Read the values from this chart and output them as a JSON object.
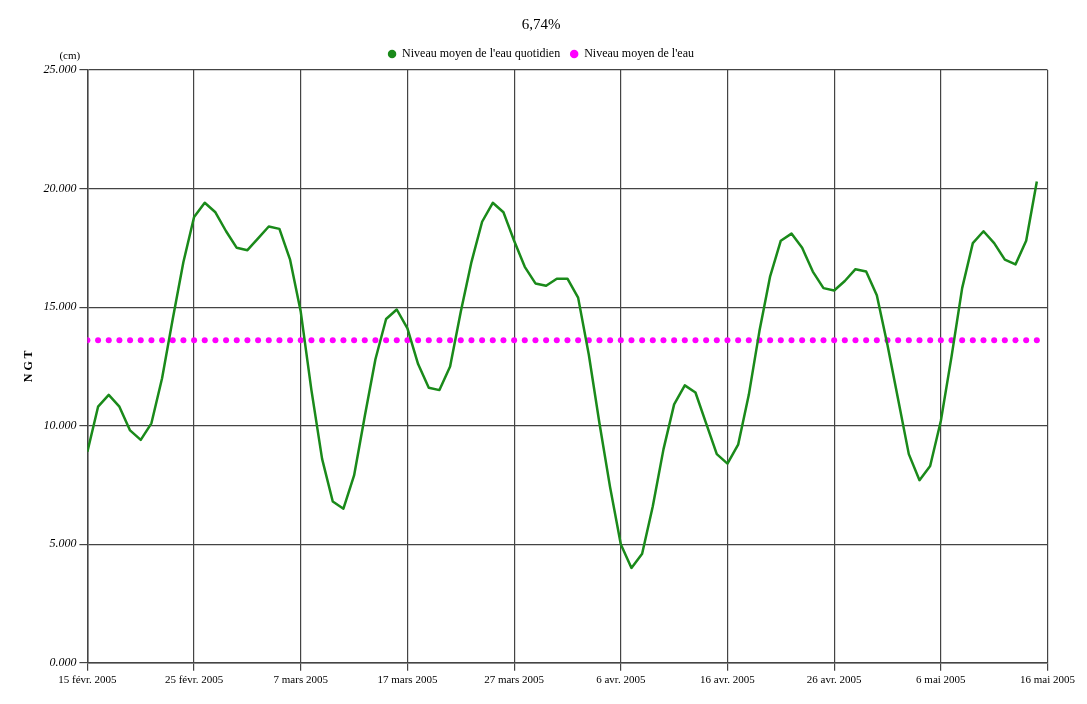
{
  "chart_data": {
    "type": "line",
    "title": "6,74%",
    "ylabel": "N G T",
    "annotations": [
      "(cm)"
    ],
    "x": [
      "2005-02-15",
      "2005-02-16",
      "2005-02-17",
      "2005-02-18",
      "2005-02-19",
      "2005-02-20",
      "2005-02-21",
      "2005-02-22",
      "2005-02-23",
      "2005-02-24",
      "2005-02-25",
      "2005-02-26",
      "2005-02-27",
      "2005-02-28",
      "2005-03-01",
      "2005-03-02",
      "2005-03-03",
      "2005-03-04",
      "2005-03-05",
      "2005-03-06",
      "2005-03-07",
      "2005-03-08",
      "2005-03-09",
      "2005-03-10",
      "2005-03-11",
      "2005-03-12",
      "2005-03-13",
      "2005-03-14",
      "2005-03-15",
      "2005-03-16",
      "2005-03-17",
      "2005-03-18",
      "2005-03-19",
      "2005-03-20",
      "2005-03-21",
      "2005-03-22",
      "2005-03-23",
      "2005-03-24",
      "2005-03-25",
      "2005-03-26",
      "2005-03-27",
      "2005-03-28",
      "2005-03-29",
      "2005-03-30",
      "2005-03-31",
      "2005-04-01",
      "2005-04-02",
      "2005-04-03",
      "2005-04-04",
      "2005-04-05",
      "2005-04-06",
      "2005-04-07",
      "2005-04-08",
      "2005-04-09",
      "2005-04-10",
      "2005-04-11",
      "2005-04-12",
      "2005-04-13",
      "2005-04-14",
      "2005-04-15",
      "2005-04-16",
      "2005-04-17",
      "2005-04-18",
      "2005-04-19",
      "2005-04-20",
      "2005-04-21",
      "2005-04-22",
      "2005-04-23",
      "2005-04-24",
      "2005-04-25",
      "2005-04-26",
      "2005-04-27",
      "2005-04-28",
      "2005-04-29",
      "2005-04-30",
      "2005-05-01",
      "2005-05-02",
      "2005-05-03",
      "2005-05-04",
      "2005-05-05",
      "2005-05-06",
      "2005-05-07",
      "2005-05-08",
      "2005-05-09",
      "2005-05-10",
      "2005-05-11",
      "2005-05-12",
      "2005-05-13",
      "2005-05-14",
      "2005-05-15"
    ],
    "series": [
      {
        "name": "Niveau moyen de l'eau quotidien",
        "color": "#1a8a1a",
        "marker": "none",
        "line_style": "solid",
        "values": [
          8.9,
          10.8,
          11.3,
          10.8,
          9.8,
          9.4,
          10.1,
          12.0,
          14.5,
          16.9,
          18.8,
          19.4,
          19.0,
          18.2,
          17.5,
          17.4,
          17.9,
          18.4,
          18.3,
          17.0,
          14.8,
          11.5,
          8.6,
          6.8,
          6.5,
          7.9,
          10.4,
          12.8,
          14.5,
          14.9,
          14.1,
          12.6,
          11.6,
          11.5,
          12.5,
          14.8,
          16.9,
          18.6,
          19.4,
          19.0,
          17.8,
          16.7,
          16.0,
          15.9,
          16.2,
          16.2,
          15.4,
          13.0,
          10.1,
          7.4,
          5.0,
          4.0,
          4.6,
          6.6,
          9.0,
          10.9,
          11.7,
          11.4,
          10.1,
          8.8,
          8.4,
          9.2,
          11.3,
          14.0,
          16.3,
          17.8,
          18.1,
          17.5,
          16.5,
          15.8,
          15.7,
          16.1,
          16.6,
          16.5,
          15.5,
          13.4,
          11.1,
          8.8,
          7.7,
          8.3,
          10.2,
          12.9,
          15.8,
          17.7,
          18.2,
          17.7,
          17.0,
          16.8,
          17.8,
          20.3
        ]
      },
      {
        "name": "Niveau moyen de l'eau",
        "type": "scatter",
        "color": "#ff00ff",
        "marker": "circle",
        "values": [
          13.6,
          13.6,
          13.6,
          13.6,
          13.6,
          13.6,
          13.6,
          13.6,
          13.6,
          13.6,
          13.6,
          13.6,
          13.6,
          13.6,
          13.6,
          13.6,
          13.6,
          13.6,
          13.6,
          13.6,
          13.6,
          13.6,
          13.6,
          13.6,
          13.6,
          13.6,
          13.6,
          13.6,
          13.6,
          13.6,
          13.6,
          13.6,
          13.6,
          13.6,
          13.6,
          13.6,
          13.6,
          13.6,
          13.6,
          13.6,
          13.6,
          13.6,
          13.6,
          13.6,
          13.6,
          13.6,
          13.6,
          13.6,
          13.6,
          13.6,
          13.6,
          13.6,
          13.6,
          13.6,
          13.6,
          13.6,
          13.6,
          13.6,
          13.6,
          13.6,
          13.6,
          13.6,
          13.6,
          13.6,
          13.6,
          13.6,
          13.6,
          13.6,
          13.6,
          13.6,
          13.6,
          13.6,
          13.6,
          13.6,
          13.6,
          13.6,
          13.6,
          13.6,
          13.6,
          13.6,
          13.6,
          13.6,
          13.6,
          13.6,
          13.6,
          13.6,
          13.6,
          13.6,
          13.6,
          13.6
        ]
      }
    ],
    "xlim": [
      "2005-02-15",
      "2005-05-16"
    ],
    "xticks": [
      {
        "value": "2005-02-15",
        "label": "15 févr. 2005"
      },
      {
        "value": "2005-02-25",
        "label": "25 févr. 2005"
      },
      {
        "value": "2005-03-07",
        "label": "7 mars 2005"
      },
      {
        "value": "2005-03-17",
        "label": "17 mars 2005"
      },
      {
        "value": "2005-03-27",
        "label": "27 mars 2005"
      },
      {
        "value": "2005-04-06",
        "label": "6 avr. 2005"
      },
      {
        "value": "2005-04-16",
        "label": "16 avr. 2005"
      },
      {
        "value": "2005-04-26",
        "label": "26 avr. 2005"
      },
      {
        "value": "2005-05-06",
        "label": "6 mai 2005"
      },
      {
        "value": "2005-05-16",
        "label": "16 mai 2005"
      }
    ],
    "ylim": [
      0,
      25
    ],
    "yticks": [
      {
        "value": 0,
        "label": "0.000"
      },
      {
        "value": 5,
        "label": "5.000"
      },
      {
        "value": 10,
        "label": "10.000"
      },
      {
        "value": 15,
        "label": "15.000"
      },
      {
        "value": 20,
        "label": "20.000"
      },
      {
        "value": 25,
        "label": "25.000"
      }
    ],
    "grid": true,
    "legend": "top"
  }
}
